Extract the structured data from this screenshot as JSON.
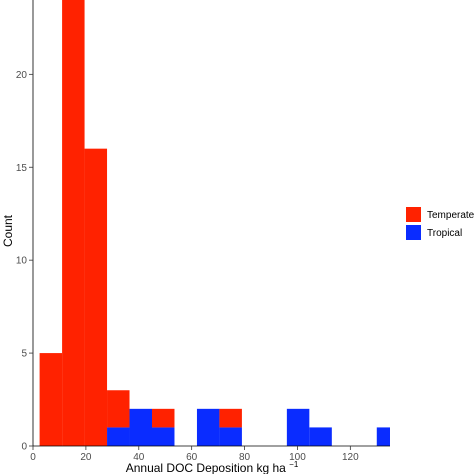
{
  "chart_data": {
    "type": "bar",
    "stacked": true,
    "xlabel": "Annual DOC Deposition kg ha",
    "xlabel_superscript": "−1",
    "ylabel": "Count",
    "xlim": [
      0,
      135
    ],
    "ylim": [
      0,
      24
    ],
    "x_ticks": [
      "0",
      "20",
      "40",
      "60",
      "80",
      "100",
      "120"
    ],
    "x_tick_values": [
      0,
      20,
      40,
      60,
      80,
      100,
      120
    ],
    "y_ticks": [
      "0",
      "5",
      "10",
      "15",
      "20"
    ],
    "y_tick_values": [
      0,
      5,
      10,
      15,
      20
    ],
    "grid": false,
    "legend_position": "right",
    "bin_width": 8.5,
    "bins": [
      {
        "x0": 2.5,
        "x1": 11.0,
        "Tropical": 0,
        "Temperate": 5
      },
      {
        "x0": 11.0,
        "x1": 19.5,
        "Tropical": 0,
        "Temperate": 24
      },
      {
        "x0": 19.5,
        "x1": 28.0,
        "Tropical": 0,
        "Temperate": 16
      },
      {
        "x0": 28.0,
        "x1": 36.5,
        "Tropical": 1,
        "Temperate": 2
      },
      {
        "x0": 36.5,
        "x1": 45.0,
        "Tropical": 2,
        "Temperate": 0
      },
      {
        "x0": 45.0,
        "x1": 53.5,
        "Tropical": 1,
        "Temperate": 1
      },
      {
        "x0": 62.0,
        "x1": 70.5,
        "Tropical": 2,
        "Temperate": 0
      },
      {
        "x0": 70.5,
        "x1": 79.0,
        "Tropical": 1,
        "Temperate": 1
      },
      {
        "x0": 96.0,
        "x1": 104.5,
        "Tropical": 2,
        "Temperate": 0
      },
      {
        "x0": 104.5,
        "x1": 113.0,
        "Tropical": 1,
        "Temperate": 0
      },
      {
        "x0": 130.0,
        "x1": 138.5,
        "Tropical": 1,
        "Temperate": 0
      }
    ],
    "series": [
      {
        "name": "Temperate",
        "color": "#ff2200"
      },
      {
        "name": "Tropical",
        "color": "#0a2cff"
      }
    ]
  }
}
